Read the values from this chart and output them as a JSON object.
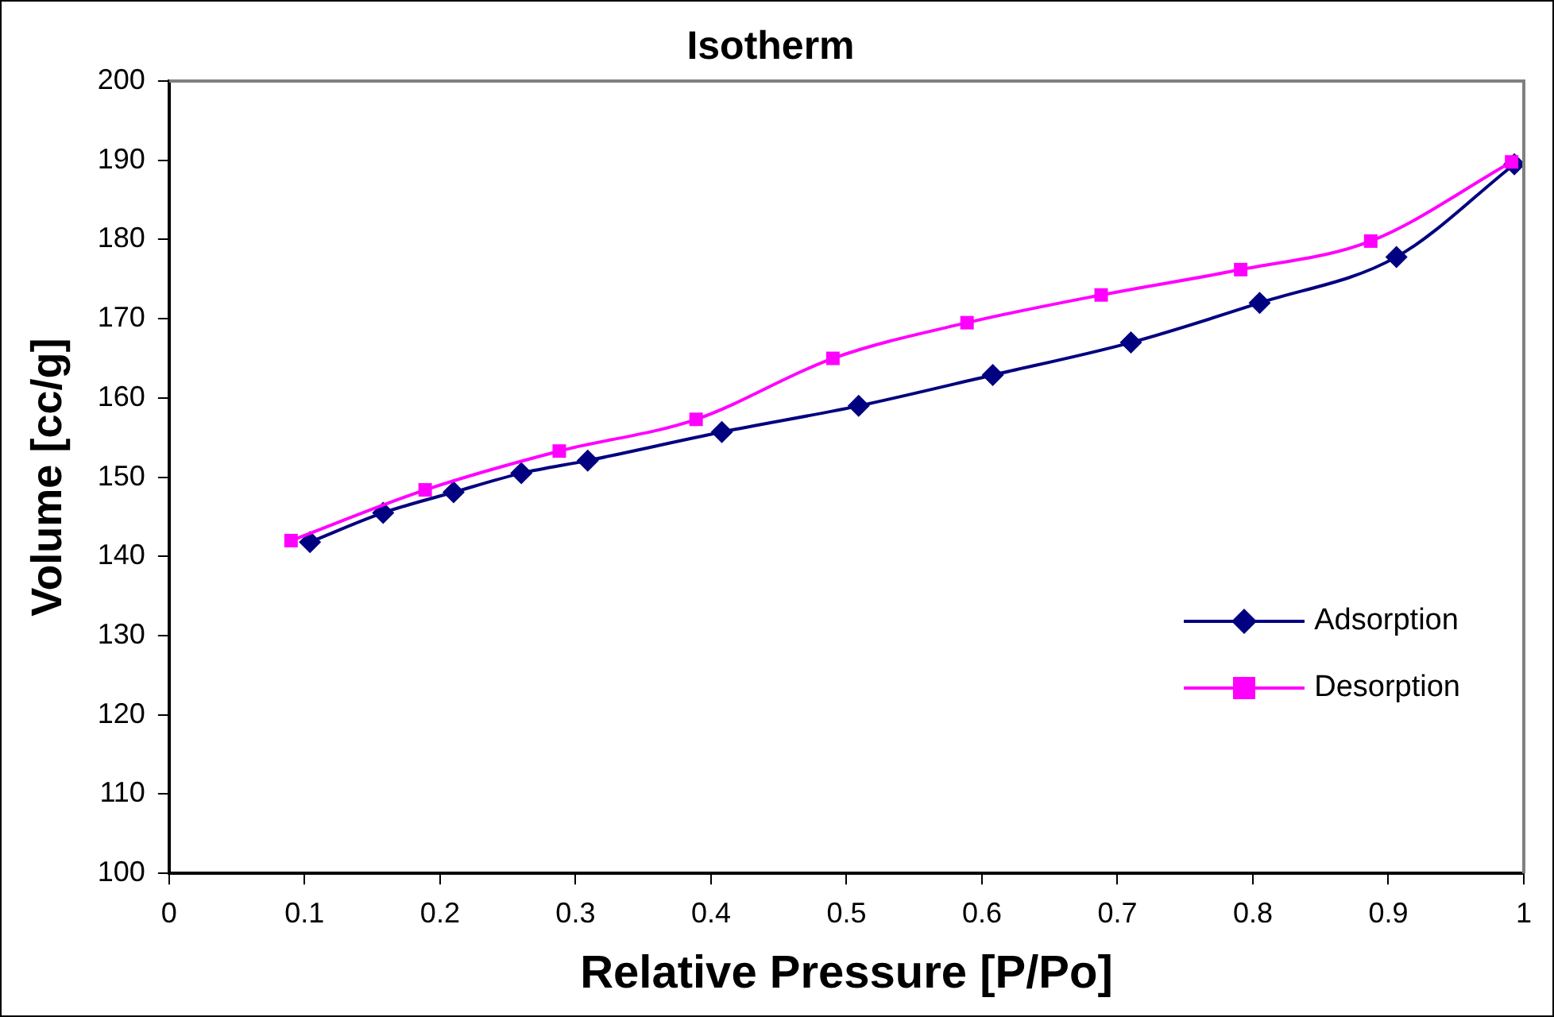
{
  "chart_data": {
    "type": "line",
    "title": "Isotherm",
    "xlabel": "Relative Pressure [P/Po]",
    "ylabel": "Volume [cc/g]",
    "xlim": [
      0,
      1
    ],
    "xticks": [
      0,
      0.1,
      0.2,
      0.3,
      0.4,
      0.5,
      0.6,
      0.7,
      0.8,
      0.9,
      1
    ],
    "ylim": [
      100,
      200
    ],
    "yticks": [
      100,
      110,
      120,
      130,
      140,
      150,
      160,
      170,
      180,
      190,
      200
    ],
    "grid": false,
    "legend": "right",
    "series": [
      {
        "name": "Adsorption",
        "color": "#000080",
        "marker": "diamond",
        "x": [
          0.104,
          0.158,
          0.21,
          0.26,
          0.309,
          0.408,
          0.509,
          0.608,
          0.71,
          0.805,
          0.906,
          0.993
        ],
        "values": [
          141.8,
          145.5,
          148.1,
          150.5,
          152.1,
          155.7,
          159.0,
          162.9,
          167.0,
          172.0,
          177.8,
          189.5
        ]
      },
      {
        "name": "Desorption",
        "color": "#ff00ff",
        "marker": "square",
        "x": [
          0.09,
          0.189,
          0.288,
          0.389,
          0.49,
          0.589,
          0.688,
          0.791,
          0.887,
          0.991
        ],
        "values": [
          142.0,
          148.4,
          153.3,
          157.3,
          165.0,
          169.5,
          173.0,
          176.2,
          179.8,
          189.8
        ]
      }
    ]
  }
}
